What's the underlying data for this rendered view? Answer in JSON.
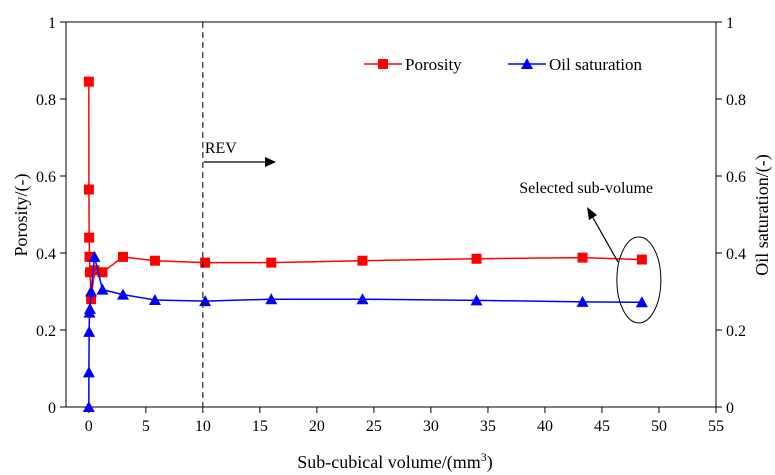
{
  "chart_data": {
    "type": "line",
    "xlabel": "Sub-cubical volume/(mm",
    "xlabel_sup": "3",
    "xlabel_end": ")",
    "ylabel": "Porosity/(-)",
    "y2label": "Oil saturation/(-)",
    "xlim": [
      -2,
      55
    ],
    "ylim": [
      0,
      1
    ],
    "y2lim": [
      0,
      1
    ],
    "xticks": [
      0,
      5,
      10,
      15,
      20,
      25,
      30,
      35,
      40,
      45,
      50,
      55
    ],
    "yticks": [
      0,
      0.2,
      0.4,
      0.6,
      0.8,
      1
    ],
    "ytick_labels": [
      "0",
      "0.2",
      "0.4",
      "0.6",
      "0.8",
      "1"
    ],
    "y2tick_labels": [
      "0",
      "0.2",
      "0.4",
      "0.6",
      "0.8",
      "1"
    ],
    "legend_placement": "top-right",
    "grid": false,
    "series": [
      {
        "name": "Porosity",
        "color": "#ff0000",
        "marker": "square",
        "axis": "left",
        "x": [
          0.001,
          0.008,
          0.03,
          0.06,
          0.1,
          0.2,
          0.5,
          1.2,
          3.0,
          5.8,
          10.2,
          16.0,
          24.0,
          34.0,
          43.3,
          48.5
        ],
        "y": [
          0.845,
          0.565,
          0.44,
          0.39,
          0.35,
          0.28,
          0.355,
          0.35,
          0.39,
          0.38,
          0.375,
          0.375,
          0.38,
          0.385,
          0.388,
          0.383
        ]
      },
      {
        "name": "Oil saturation",
        "color": "#0000ff",
        "marker": "triangle",
        "axis": "right",
        "x": [
          0.001,
          0.008,
          0.03,
          0.06,
          0.1,
          0.2,
          0.5,
          1.2,
          3.0,
          5.8,
          10.2,
          16.0,
          24.0,
          34.0,
          43.3,
          48.5
        ],
        "y": [
          0.0,
          0.09,
          0.195,
          0.245,
          0.255,
          0.3,
          0.39,
          0.305,
          0.292,
          0.278,
          0.275,
          0.28,
          0.28,
          0.277,
          0.273,
          0.272
        ]
      }
    ],
    "annotations": {
      "rev_line_x": 10,
      "rev_label": "REV",
      "selected_label": "Selected sub-volume",
      "selected_x": 48.5,
      "selected_y": 0.33
    }
  }
}
